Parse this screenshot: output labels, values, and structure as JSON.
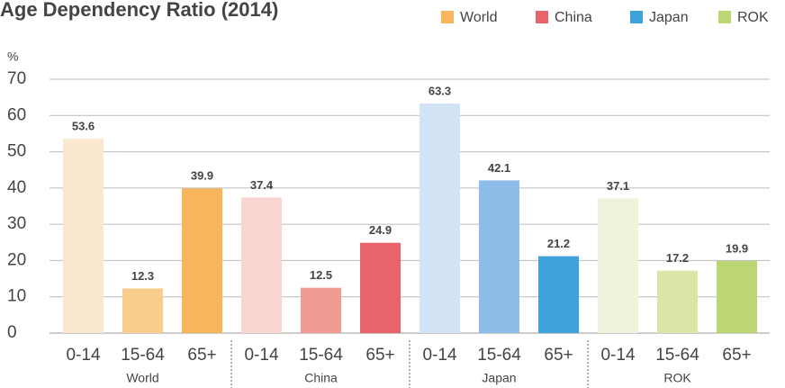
{
  "chart_data": {
    "type": "bar",
    "title": "Age Dependency Ratio (2014)",
    "y_label": "%",
    "categories": [
      "0-14",
      "15-64",
      "65+"
    ],
    "series": [
      {
        "name": "World",
        "color": "#f7b55c",
        "shades": [
          "#fbe9cf",
          "#f9cd8c",
          "#f7b55c"
        ],
        "values": [
          53.6,
          12.3,
          39.9
        ]
      },
      {
        "name": "China",
        "color": "#e9646a",
        "shades": [
          "#f9d6d1",
          "#f09c95",
          "#e9646a"
        ],
        "values": [
          37.4,
          12.5,
          24.9
        ]
      },
      {
        "name": "Japan",
        "color": "#3fa2dc",
        "shades": [
          "#d2e3f5",
          "#8fbde9",
          "#3fa2dc"
        ],
        "values": [
          63.3,
          42.1,
          21.2
        ]
      },
      {
        "name": "ROK",
        "color": "#bcd673",
        "shades": [
          "#eef3dc",
          "#d9e6a6",
          "#bcd673"
        ],
        "values": [
          37.1,
          17.2,
          19.9
        ]
      }
    ],
    "ylim": [
      0,
      70
    ],
    "yticks": [
      0,
      10,
      20,
      30,
      40,
      50,
      60,
      70
    ],
    "grid": true,
    "legend": "top-right"
  }
}
